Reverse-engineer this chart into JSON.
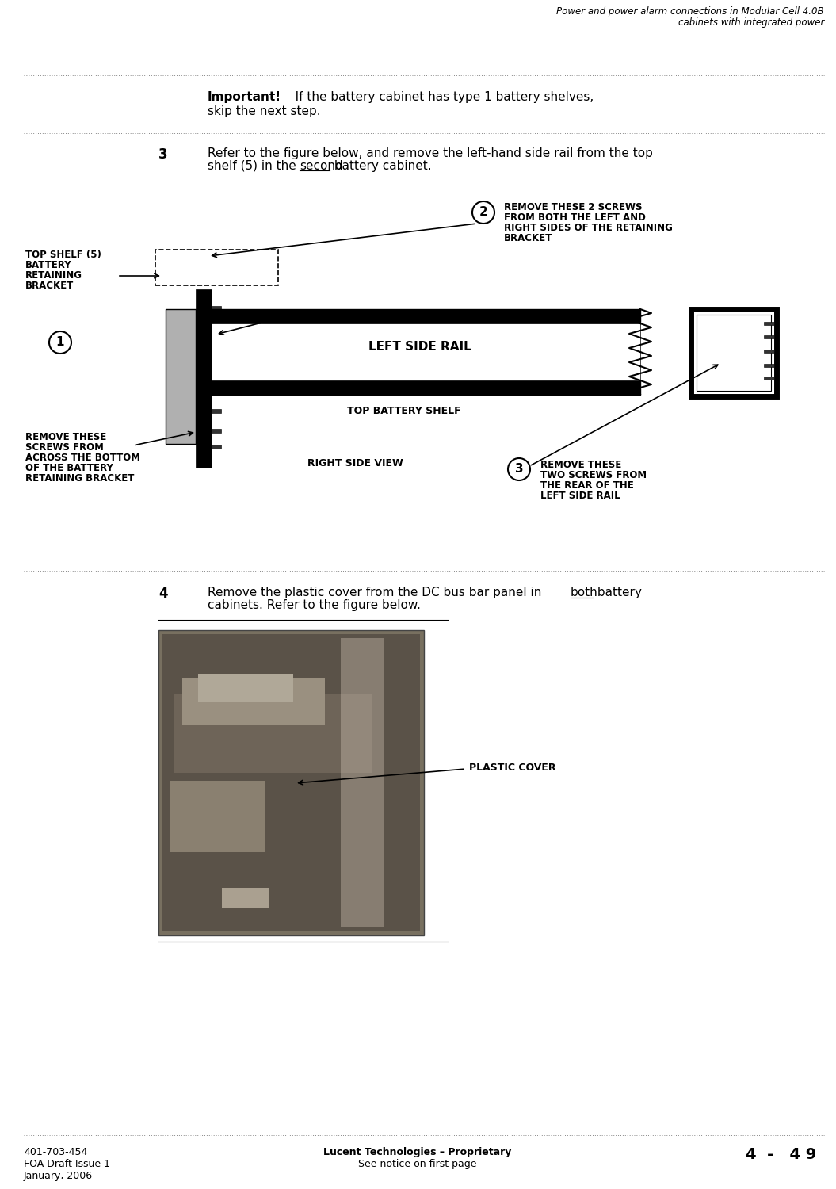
{
  "page_title_line1": "Power and power alarm connections in Modular Cell 4.0B",
  "page_title_line2": "cabinets with integrated power",
  "page_number": "4  -   4 9",
  "footer_left_line1": "401-703-454",
  "footer_left_line2": "FOA Draft Issue 1",
  "footer_left_line3": "January, 2006",
  "footer_center_line1": "Lucent Technologies – Proprietary",
  "footer_center_line2": "See notice on first page",
  "important_bold": "Important!",
  "step3_num": "3",
  "step3_line1": "Refer to the figure below, and remove the left-hand side rail from the top",
  "step3_line2a": "shelf (5) in the ",
  "step3_line2b": "second",
  "step3_line2c": " battery cabinet.",
  "step4_num": "4",
  "step4_line1a": "Remove the plastic cover from the DC bus bar panel in ",
  "step4_line1b": "both",
  "step4_line1c": " battery",
  "step4_line2": "cabinets. Refer to the figure below.",
  "label_top_shelf_1": "TOP SHELF (5)",
  "label_top_shelf_2": "BATTERY",
  "label_top_shelf_3": "RETAINING",
  "label_top_shelf_4": "BRACKET",
  "label_left_side_rail": "LEFT SIDE RAIL",
  "label_top_battery_shelf": "TOP BATTERY SHELF",
  "label_right_side_view": "RIGHT SIDE VIEW",
  "label_remove_bottom_1": "REMOVE THESE",
  "label_remove_bottom_2": "SCREWS FROM",
  "label_remove_bottom_3": "ACROSS THE BOTTOM",
  "label_remove_bottom_4": "OF THE BATTERY",
  "label_remove_bottom_5": "RETAINING BRACKET",
  "label_remove_rear_1": "REMOVE THESE",
  "label_remove_rear_2": "TWO SCREWS FROM",
  "label_remove_rear_3": "THE REAR OF THE",
  "label_remove_rear_4": "LEFT SIDE RAIL",
  "label_remove_sides_1": "REMOVE THESE 2 SCREWS",
  "label_remove_sides_2": "FROM BOTH THE LEFT AND",
  "label_remove_sides_3": "RIGHT SIDES OF THE RETAINING",
  "label_remove_sides_4": "BRACKET",
  "label_plastic_cover": "PLASTIC COVER",
  "bg_color": "#ffffff"
}
